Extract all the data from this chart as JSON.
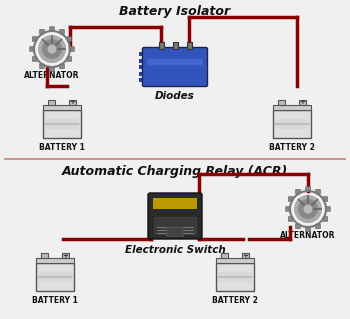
{
  "title_top": "Battery Isolator",
  "title_bottom": "Automatic Charging Relay (ACR)",
  "label_diodes": "Diodes",
  "label_switch": "Electronic Switch",
  "label_alternator": "ALTERNATOR",
  "label_battery1": "BATTERY 1",
  "label_battery2": "BATTERY 2",
  "wire_color": "#8B0000",
  "wire_lw": 2.5,
  "bg_color": "#f0f0f0",
  "divider_color": "#c08080",
  "title_fontsize": 9,
  "label_fontsize": 5.5,
  "component_fontsize": 7.5
}
